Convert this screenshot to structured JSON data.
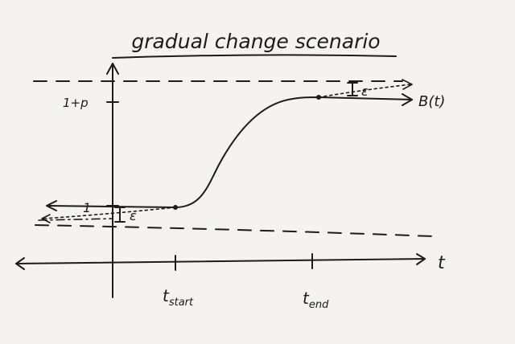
{
  "title": "gradual change scenario",
  "labels": {
    "y_upper": "1+p",
    "y_lower": "1",
    "epsilon_upper": "ε",
    "epsilon_lower": "ε",
    "curve": "B(t)",
    "x_axis": "t",
    "t_start_main": "t",
    "t_start_sub": "start",
    "t_end_main": "t",
    "t_end_sub": "end"
  },
  "colors": {
    "ink": "#1c1c1c",
    "paper": "#f4f3f1"
  }
}
